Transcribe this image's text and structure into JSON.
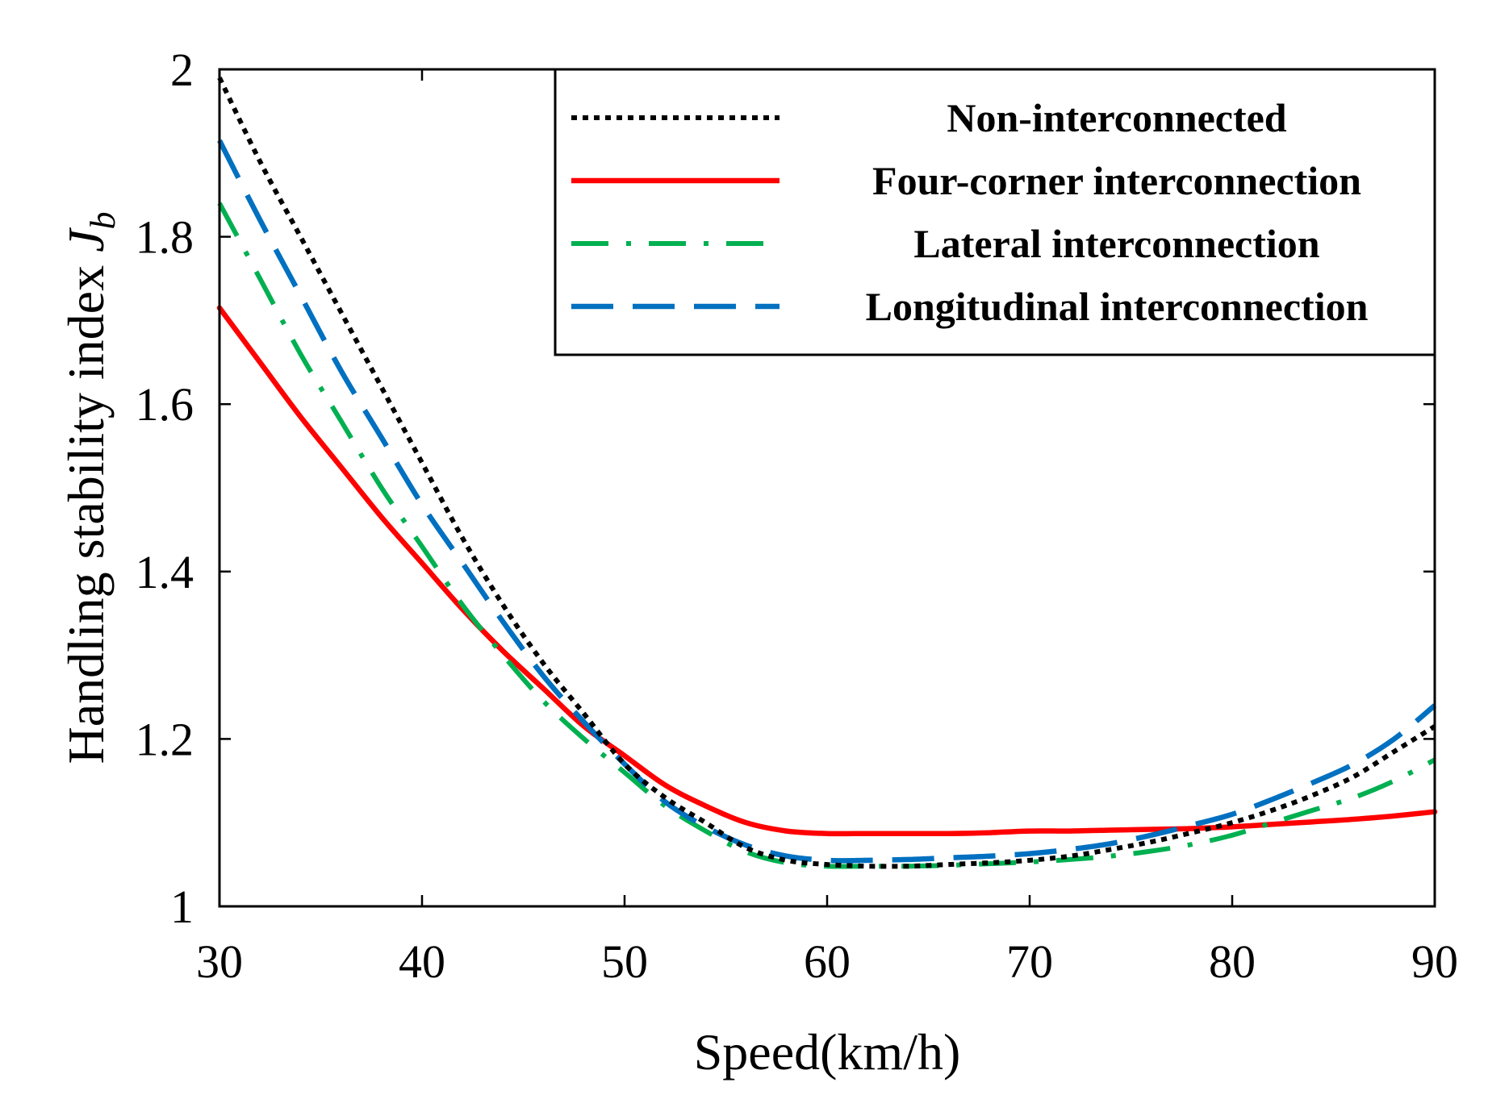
{
  "chart_data": {
    "type": "line",
    "title": "",
    "xlabel": "Speed(km/h)",
    "ylabel_main": "Handling stability index ",
    "ylabel_symbol": "J",
    "ylabel_subscript": "b",
    "xlim": [
      30,
      90
    ],
    "ylim": [
      1,
      2
    ],
    "xticks": [
      30,
      40,
      50,
      60,
      70,
      80,
      90
    ],
    "yticks": [
      1,
      1.2,
      1.4,
      1.6,
      1.8,
      2
    ],
    "ytick_labels": [
      "1",
      "1.2",
      "1.4",
      "1.6",
      "1.8",
      "2"
    ],
    "legend_position": "top-right",
    "grid": false,
    "series": [
      {
        "name": "Non-interconnected",
        "color": "#000000",
        "style": "dotted",
        "x": [
          30,
          32,
          34,
          36,
          38,
          40,
          42,
          44,
          46,
          48,
          50,
          52,
          54,
          56,
          58,
          60,
          62,
          64,
          66,
          68,
          70,
          72,
          74,
          76,
          78,
          80,
          82,
          84,
          86,
          88,
          90
        ],
        "y": [
          1.99,
          1.89,
          1.8,
          1.71,
          1.62,
          1.53,
          1.44,
          1.36,
          1.29,
          1.23,
          1.17,
          1.13,
          1.1,
          1.07,
          1.055,
          1.05,
          1.048,
          1.048,
          1.05,
          1.052,
          1.055,
          1.06,
          1.068,
          1.077,
          1.088,
          1.1,
          1.115,
          1.133,
          1.155,
          1.185,
          1.215
        ]
      },
      {
        "name": "Four-corner interconnection",
        "color": "#ff0000",
        "style": "solid",
        "x": [
          30,
          32,
          34,
          36,
          38,
          40,
          42,
          44,
          46,
          48,
          50,
          52,
          54,
          56,
          58,
          60,
          62,
          64,
          66,
          68,
          70,
          72,
          74,
          76,
          78,
          80,
          82,
          84,
          86,
          88,
          90
        ],
        "y": [
          1.715,
          1.65,
          1.585,
          1.525,
          1.465,
          1.41,
          1.355,
          1.305,
          1.26,
          1.215,
          1.18,
          1.145,
          1.12,
          1.1,
          1.09,
          1.087,
          1.087,
          1.087,
          1.087,
          1.088,
          1.09,
          1.09,
          1.091,
          1.092,
          1.093,
          1.095,
          1.098,
          1.101,
          1.104,
          1.108,
          1.113
        ]
      },
      {
        "name": "Lateral interconnection",
        "color": "#00b050",
        "style": "dash-dot",
        "x": [
          30,
          32,
          34,
          36,
          38,
          40,
          42,
          44,
          46,
          48,
          50,
          52,
          54,
          56,
          58,
          60,
          62,
          64,
          66,
          68,
          70,
          72,
          74,
          76,
          78,
          80,
          82,
          84,
          86,
          88,
          90
        ],
        "y": [
          1.84,
          1.75,
          1.66,
          1.58,
          1.5,
          1.43,
          1.36,
          1.3,
          1.245,
          1.2,
          1.16,
          1.12,
          1.09,
          1.065,
          1.052,
          1.048,
          1.048,
          1.048,
          1.049,
          1.051,
          1.053,
          1.056,
          1.06,
          1.066,
          1.074,
          1.085,
          1.1,
          1.115,
          1.13,
          1.15,
          1.175
        ]
      },
      {
        "name": "Longitudinal interconnection",
        "color": "#0070c0",
        "style": "dashed",
        "x": [
          30,
          32,
          34,
          36,
          38,
          40,
          42,
          44,
          46,
          48,
          50,
          52,
          54,
          56,
          58,
          60,
          62,
          64,
          66,
          68,
          70,
          72,
          74,
          76,
          78,
          80,
          82,
          84,
          86,
          88,
          90
        ],
        "y": [
          1.915,
          1.82,
          1.73,
          1.64,
          1.56,
          1.48,
          1.41,
          1.34,
          1.275,
          1.22,
          1.17,
          1.125,
          1.095,
          1.073,
          1.06,
          1.055,
          1.055,
          1.056,
          1.058,
          1.06,
          1.063,
          1.068,
          1.075,
          1.085,
          1.097,
          1.11,
          1.128,
          1.148,
          1.17,
          1.2,
          1.24
        ]
      }
    ]
  }
}
